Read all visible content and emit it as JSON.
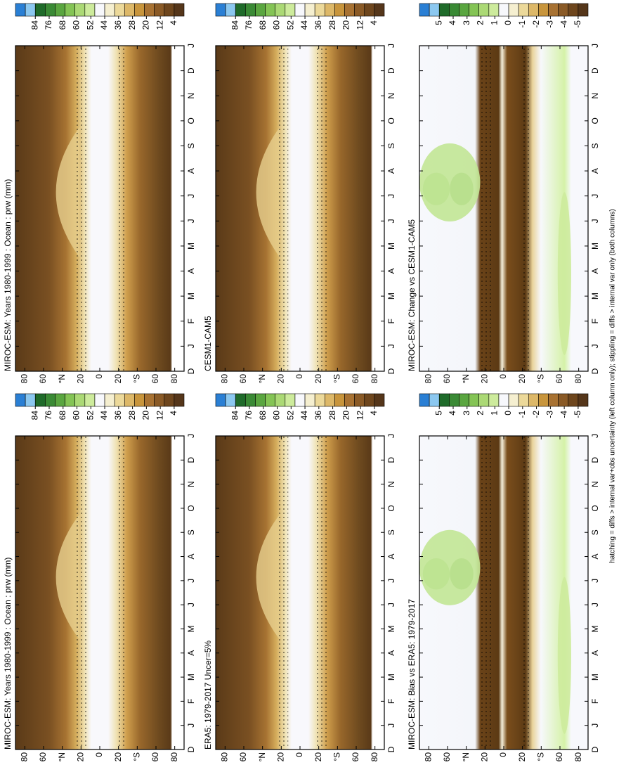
{
  "chart_data": [
    {
      "type": "contour",
      "title": "MIROC-ESM: Years 1980-1999 : Ocean : prw (mm)",
      "field": "mean",
      "x": [
        "D",
        "J",
        "F",
        "M",
        "A",
        "M",
        "J",
        "J",
        "A",
        "S",
        "O",
        "N",
        "D",
        "J"
      ],
      "ylim": [
        -90,
        90
      ],
      "yticks": [
        80,
        60,
        {
          "value": 40,
          "label": "°N"
        },
        20,
        0,
        {
          "value": -20,
          "label": "20"
        },
        {
          "value": -40,
          "label": "°S"
        },
        {
          "value": -60,
          "label": "60"
        },
        {
          "value": -80,
          "label": "80"
        }
      ],
      "colorbar_ticks": [
        84,
        76,
        68,
        60,
        52,
        44,
        36,
        28,
        20,
        12,
        4
      ]
    },
    {
      "type": "contour",
      "title": "MIROC-ESM: Years 1980-1999 : Ocean : prw (mm)",
      "field": "mean",
      "x": [
        "D",
        "J",
        "F",
        "M",
        "A",
        "M",
        "J",
        "J",
        "A",
        "S",
        "O",
        "N",
        "D",
        "J"
      ],
      "ylim": [
        -90,
        90
      ],
      "yticks": [
        80,
        60,
        {
          "value": 40,
          "label": "°N"
        },
        20,
        0,
        {
          "value": -20,
          "label": "20"
        },
        {
          "value": -40,
          "label": "°S"
        },
        {
          "value": -60,
          "label": "60"
        },
        {
          "value": -80,
          "label": "80"
        }
      ],
      "colorbar_ticks": [
        84,
        76,
        68,
        60,
        52,
        44,
        36,
        28,
        20,
        12,
        4
      ]
    },
    {
      "type": "contour",
      "title": "ERA5: 1979-2017 Uncer=5%",
      "field": "mean",
      "x": [
        "D",
        "J",
        "F",
        "M",
        "A",
        "M",
        "J",
        "J",
        "A",
        "S",
        "O",
        "N",
        "D",
        "J"
      ],
      "ylim": [
        -90,
        90
      ],
      "yticks": [
        80,
        60,
        {
          "value": 40,
          "label": "°N"
        },
        20,
        0,
        {
          "value": -20,
          "label": "20"
        },
        {
          "value": -40,
          "label": "°S"
        },
        {
          "value": -60,
          "label": "60"
        },
        {
          "value": -80,
          "label": "80"
        }
      ],
      "colorbar_ticks": [
        84,
        76,
        68,
        60,
        52,
        44,
        36,
        28,
        20,
        12,
        4
      ]
    },
    {
      "type": "contour",
      "title": "CESM1-CAM5",
      "field": "mean",
      "x": [
        "D",
        "J",
        "F",
        "M",
        "A",
        "M",
        "J",
        "J",
        "A",
        "S",
        "O",
        "N",
        "D",
        "J"
      ],
      "ylim": [
        -90,
        90
      ],
      "yticks": [
        80,
        60,
        {
          "value": 40,
          "label": "°N"
        },
        20,
        0,
        {
          "value": -20,
          "label": "20"
        },
        {
          "value": -40,
          "label": "°S"
        },
        {
          "value": -60,
          "label": "60"
        },
        {
          "value": -80,
          "label": "80"
        }
      ],
      "colorbar_ticks": [
        84,
        76,
        68,
        60,
        52,
        44,
        36,
        28,
        20,
        12,
        4
      ]
    },
    {
      "type": "contour",
      "title": "MIROC-ESM: Bias vs ERA5: 1979-2017",
      "field": "diff",
      "x": [
        "D",
        "J",
        "F",
        "M",
        "A",
        "M",
        "J",
        "J",
        "A",
        "S",
        "O",
        "N",
        "D",
        "J"
      ],
      "ylim": [
        -90,
        90
      ],
      "yticks": [
        80,
        60,
        {
          "value": 40,
          "label": "°N"
        },
        20,
        0,
        {
          "value": -20,
          "label": "20"
        },
        {
          "value": -40,
          "label": "°S"
        },
        {
          "value": -60,
          "label": "60"
        },
        {
          "value": -80,
          "label": "80"
        }
      ],
      "colorbar_ticks": [
        5,
        4,
        3,
        2,
        1,
        0,
        -1,
        -2,
        -3,
        -4,
        -5
      ]
    },
    {
      "type": "contour",
      "title": "MIROC-ESM: Change vs CESM1-CAM5",
      "field": "diff",
      "x": [
        "D",
        "J",
        "F",
        "M",
        "A",
        "M",
        "J",
        "J",
        "A",
        "S",
        "O",
        "N",
        "D",
        "J"
      ],
      "ylim": [
        -90,
        90
      ],
      "yticks": [
        80,
        60,
        {
          "value": 40,
          "label": "°N"
        },
        20,
        0,
        {
          "value": -20,
          "label": "20"
        },
        {
          "value": -40,
          "label": "°S"
        },
        {
          "value": -60,
          "label": "60"
        },
        {
          "value": -80,
          "label": "80"
        }
      ],
      "colorbar_ticks": [
        5,
        4,
        3,
        2,
        1,
        0,
        -1,
        -2,
        -3,
        -4,
        -5
      ]
    }
  ],
  "footnote": "hatching = diffs > internal var+obs uncertainty (left column only); stippling = diffs > internal var only (both columns)"
}
